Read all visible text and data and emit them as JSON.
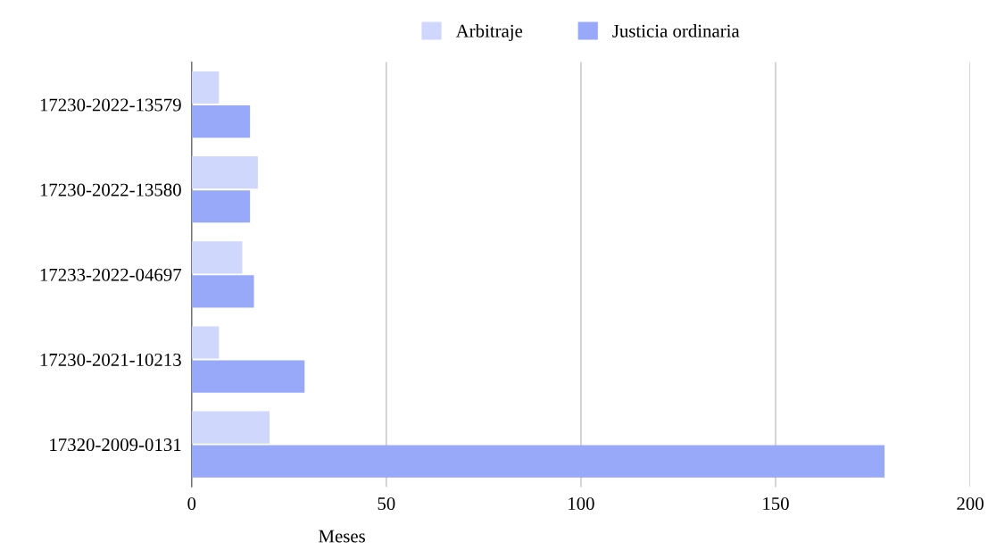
{
  "chart_data": {
    "type": "bar",
    "orientation": "horizontal",
    "xlabel": "Meses",
    "categories": [
      "17230-2022-13579",
      "17230-2022-13580",
      "17233-2022-04697",
      "17230-2021-10213",
      "17320-2009-0131"
    ],
    "series": [
      {
        "name": "Arbitraje",
        "color": "#cfd7fc",
        "values": [
          7,
          17,
          13,
          7,
          20
        ]
      },
      {
        "name": "Justicia ordinaria",
        "color": "#99a9fa",
        "values": [
          15,
          15,
          16,
          29,
          178
        ]
      }
    ],
    "xlim": [
      0,
      200
    ],
    "xticks": [
      0,
      50,
      100,
      150,
      200
    ],
    "grid": "x",
    "legend": "top"
  }
}
